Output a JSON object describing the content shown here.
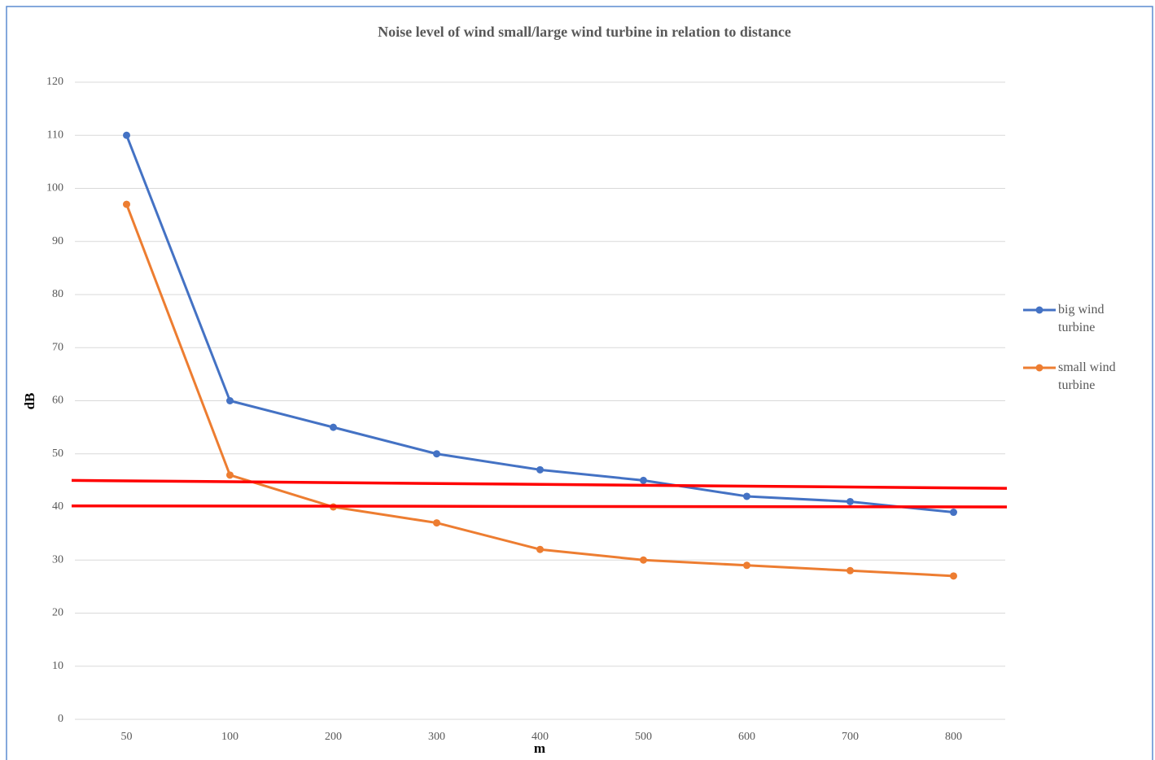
{
  "chart_data": {
    "type": "line",
    "title": "Noise level of wind small/large wind turbine in relation to distance",
    "x_label": "m",
    "y_label": "dB",
    "categories": [
      "50",
      "100",
      "200",
      "300",
      "400",
      "500",
      "600",
      "700",
      "800"
    ],
    "series": [
      {
        "name": "big wind turbine",
        "color": "#4472c4",
        "values": [
          110,
          60,
          55,
          50,
          47,
          45,
          42,
          41,
          39
        ]
      },
      {
        "name": "small wind turbine",
        "color": "#ed7d31",
        "values": [
          97,
          46,
          40,
          37,
          32,
          30,
          29,
          28,
          27
        ]
      }
    ],
    "annotations": [
      {
        "color": "#ff0000",
        "values": [
          45,
          43.5
        ]
      },
      {
        "color": "#ff0000",
        "values": [
          40.2,
          40
        ]
      }
    ],
    "ylim": [
      0,
      120
    ],
    "yticks": [
      0,
      10,
      20,
      30,
      40,
      50,
      60,
      70,
      80,
      90,
      100,
      110,
      120
    ],
    "grid": true,
    "legend": "right"
  }
}
